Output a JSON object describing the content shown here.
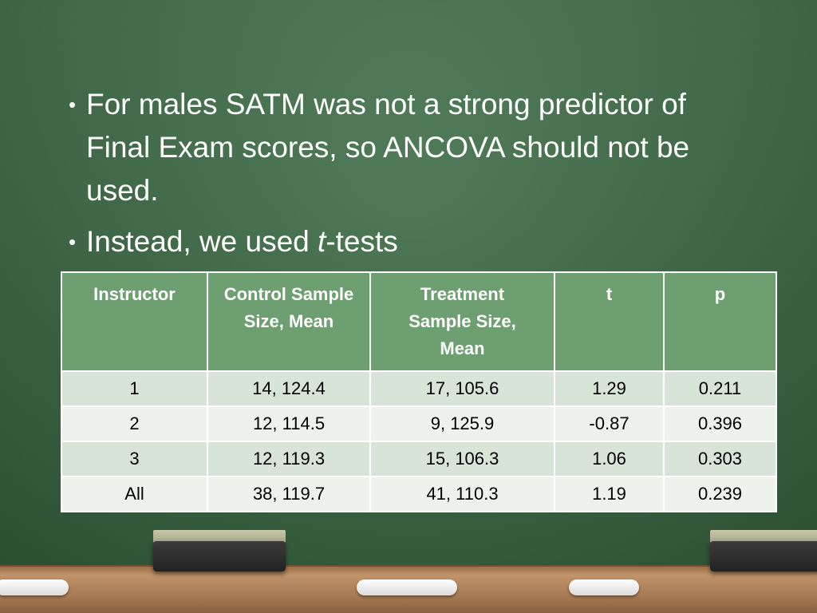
{
  "bullets": [
    {
      "lines": [
        "For males SATM was not a strong predictor of",
        "Final Exam scores, so ANCOVA should not be",
        "used."
      ]
    },
    {
      "before": "Instead, we used ",
      "italic": "t",
      "after": "-tests"
    }
  ],
  "table": {
    "headers": [
      [
        "Instructor"
      ],
      [
        "Control Sample",
        "Size, Mean"
      ],
      [
        "Treatment",
        "Sample Size,",
        "Mean"
      ],
      [
        "t"
      ],
      [
        "p"
      ]
    ],
    "rows": [
      [
        "1",
        "14,   124.4",
        "17,   105.6",
        "1.29",
        "0.211"
      ],
      [
        "2",
        "12,   114.5",
        "9,   125.9",
        "-0.87",
        "0.396"
      ],
      [
        "3",
        "12,   119.3",
        "15,   106.3",
        "1.06",
        "0.303"
      ],
      [
        "All",
        "38,    119.7",
        "41,   110.3",
        "1.19",
        "0.239"
      ]
    ]
  },
  "colors": {
    "board": "#3f6a48",
    "header_fill": "#6d9f70",
    "row_odd": "#d8e4d8",
    "row_even": "#edf2ed",
    "tray": "#a87c55"
  }
}
